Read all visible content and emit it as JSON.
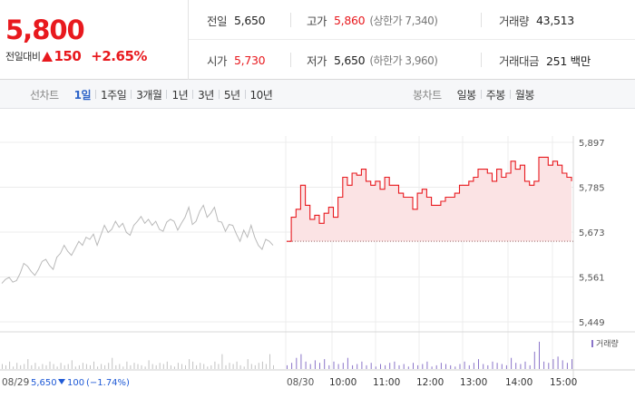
{
  "quote": {
    "price": "5,800",
    "change_label": "전일대비",
    "change_direction": "up",
    "change_value": "150",
    "change_percent": "+2.65%",
    "up_color": "#e8191e",
    "down_color": "#1f5ad6",
    "stats": {
      "prev_close": {
        "label": "전일",
        "value": "5,650"
      },
      "high": {
        "label": "고가",
        "value": "5,860",
        "sub": "(상한가 7,340)"
      },
      "volume": {
        "label": "거래량",
        "value": "43,513"
      },
      "open": {
        "label": "시가",
        "value": "5,730"
      },
      "low": {
        "label": "저가",
        "value": "5,650",
        "sub": "(하한가 3,960)"
      },
      "trade_value": {
        "label": "거래대금",
        "value": "251 백만"
      }
    }
  },
  "tabs": {
    "line_title": "선차트",
    "line_tabs": [
      "1일",
      "1주일",
      "3개월",
      "1년",
      "3년",
      "5년",
      "10년"
    ],
    "line_active": 0,
    "candle_title": "봉차트",
    "candle_tabs": [
      "일봉",
      "주봉",
      "월봉"
    ]
  },
  "chart_data": {
    "type": "line",
    "y_ticks": [
      "5,897",
      "5,785",
      "5,673",
      "5,561",
      "5,449"
    ],
    "ylim": [
      5449,
      5897
    ],
    "prev_close": 5650,
    "time_ticks": [
      "10:00",
      "11:00",
      "12:00",
      "13:00",
      "14:00",
      "15:00"
    ],
    "prev_day": {
      "date": "08/29",
      "close": "5,650",
      "change_direction": "down",
      "change": "100",
      "change_percent": "(−1.74%)"
    },
    "today_label": "08/30",
    "volume_legend": "거래량",
    "prev_day_series": [
      5545,
      5555,
      5560,
      5548,
      5552,
      5570,
      5595,
      5588,
      5575,
      5565,
      5580,
      5600,
      5605,
      5590,
      5580,
      5610,
      5620,
      5640,
      5625,
      5615,
      5632,
      5650,
      5640,
      5660,
      5655,
      5668,
      5640,
      5665,
      5690,
      5672,
      5680,
      5700,
      5685,
      5695,
      5672,
      5665,
      5690,
      5700,
      5712,
      5695,
      5705,
      5690,
      5700,
      5680,
      5675,
      5698,
      5705,
      5700,
      5678,
      5695,
      5710,
      5735,
      5692,
      5700,
      5725,
      5740,
      5710,
      5720,
      5735,
      5700,
      5698,
      5675,
      5692,
      5690,
      5668,
      5650,
      5678,
      5660,
      5690,
      5660,
      5640,
      5630,
      5655,
      5650,
      5640
    ],
    "today_series": [
      5650,
      5710,
      5730,
      5790,
      5740,
      5705,
      5715,
      5695,
      5720,
      5735,
      5710,
      5760,
      5810,
      5790,
      5820,
      5815,
      5830,
      5800,
      5790,
      5800,
      5780,
      5810,
      5790,
      5790,
      5770,
      5760,
      5760,
      5730,
      5770,
      5780,
      5760,
      5740,
      5740,
      5750,
      5760,
      5760,
      5770,
      5790,
      5790,
      5800,
      5810,
      5830,
      5830,
      5820,
      5800,
      5830,
      5810,
      5820,
      5850,
      5830,
      5840,
      5800,
      5790,
      5800,
      5860,
      5860,
      5840,
      5850,
      5840,
      5820,
      5810,
      5800
    ],
    "today_volume": [
      3,
      5,
      9,
      12,
      6,
      4,
      7,
      5,
      8,
      3,
      6,
      4,
      5,
      9,
      3,
      4,
      6,
      3,
      5,
      2,
      4,
      3,
      5,
      6,
      3,
      4,
      2,
      5,
      3,
      4,
      6,
      2,
      3,
      5,
      4,
      3,
      2,
      4,
      6,
      3,
      5,
      8,
      4,
      3,
      6,
      5,
      4,
      3,
      9,
      5,
      4,
      6,
      3,
      14,
      22,
      6,
      5,
      8,
      10,
      7,
      5,
      8
    ],
    "prev_volume": [
      4,
      3,
      6,
      2,
      5,
      3,
      4,
      8,
      3,
      5,
      2,
      4,
      3,
      6,
      4,
      2,
      5,
      3,
      4,
      7,
      2,
      3,
      5,
      4,
      3,
      6,
      2,
      4,
      3,
      5,
      9,
      3,
      4,
      2,
      6,
      3,
      5,
      4,
      3,
      2,
      7,
      4,
      3,
      5,
      4,
      6,
      3,
      2,
      5,
      4,
      3,
      8,
      6,
      3,
      5,
      4,
      2,
      3,
      6,
      4,
      12,
      3,
      5,
      4,
      6,
      3,
      2,
      8,
      4,
      3,
      5,
      6,
      4,
      12,
      3
    ]
  }
}
